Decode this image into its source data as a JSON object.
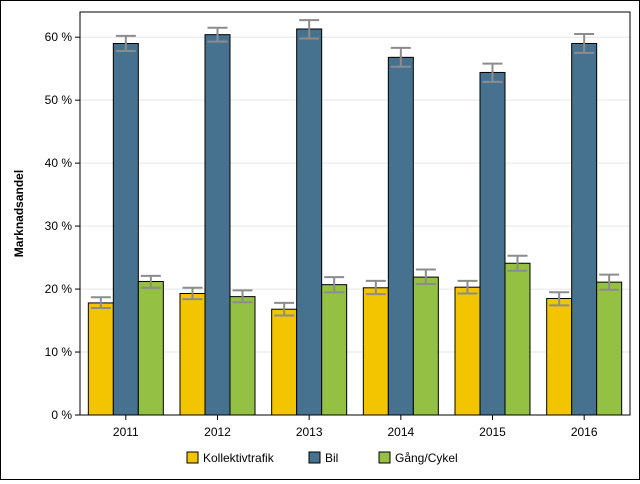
{
  "chart_data": {
    "type": "bar",
    "title": "",
    "xlabel": "",
    "ylabel": "Marknadsandel",
    "ylim": [
      0,
      64
    ],
    "yticks": [
      "0 %",
      "10 %",
      "20 %",
      "30 %",
      "40 %",
      "50 %",
      "60 %"
    ],
    "ytick_values": [
      0,
      10,
      20,
      30,
      40,
      50,
      60
    ],
    "categories": [
      "2011",
      "2012",
      "2013",
      "2014",
      "2015",
      "2016"
    ],
    "grid": true,
    "legend_position": "bottom",
    "series": [
      {
        "name": "Kollektivtrafik",
        "color": "#f2c500",
        "values": [
          17.8,
          19.3,
          16.8,
          20.2,
          20.3,
          18.5
        ],
        "err_low": [
          17.0,
          18.4,
          15.8,
          19.2,
          19.3,
          17.4
        ],
        "err_high": [
          18.7,
          20.2,
          17.8,
          21.3,
          21.3,
          19.5
        ]
      },
      {
        "name": "Bil",
        "color": "#47728f",
        "values": [
          59.0,
          60.4,
          61.3,
          56.8,
          54.4,
          59.0
        ],
        "err_low": [
          57.8,
          59.3,
          59.8,
          55.3,
          52.9,
          57.5
        ],
        "err_high": [
          60.2,
          61.5,
          62.7,
          58.3,
          55.8,
          60.5
        ]
      },
      {
        "name": "Gång/Cykel",
        "color": "#94c043",
        "values": [
          21.2,
          18.8,
          20.7,
          21.9,
          24.1,
          21.1
        ],
        "err_low": [
          20.2,
          17.9,
          19.5,
          20.8,
          22.9,
          19.9
        ],
        "err_high": [
          22.1,
          19.8,
          21.9,
          23.1,
          25.3,
          22.3
        ]
      }
    ]
  }
}
